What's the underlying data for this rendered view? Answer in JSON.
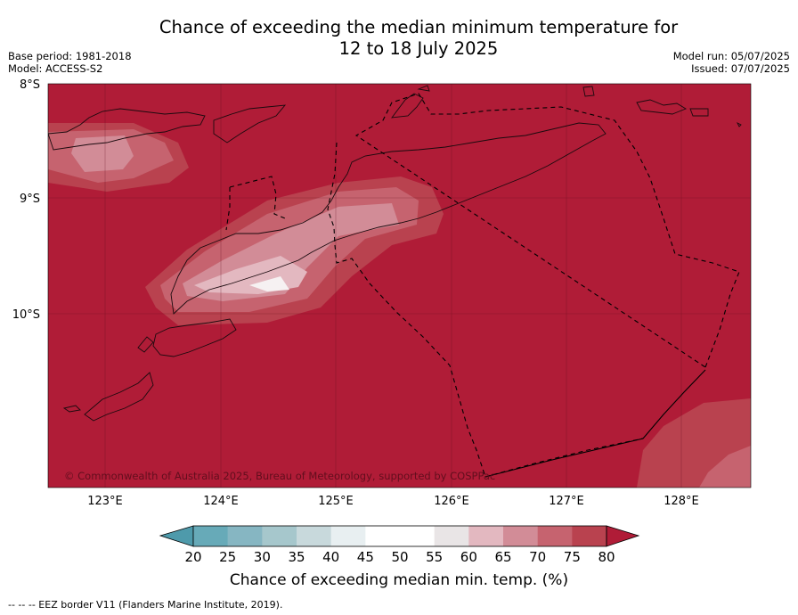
{
  "title_line1": "Chance of exceeding the median minimum temperature for",
  "title_line2": "12 to 18 July 2025",
  "meta": {
    "base_period": "Base period: 1981-2018",
    "model": "Model: ACCESS-S2",
    "model_run": "Model run: 05/07/2025",
    "issued": "Issued: 07/07/2025"
  },
  "map": {
    "lat_labels": [
      "8°S",
      "9°S",
      "10°S"
    ],
    "lon_labels": [
      "123°E",
      "124°E",
      "125°E",
      "126°E",
      "127°E",
      "128°E"
    ],
    "copyright": "© Commonwealth of Australia 2025, Bureau of Meteorology, supported by COSPPac",
    "background_color": "#b01c37"
  },
  "colorbar": {
    "ticks": [
      "20",
      "25",
      "30",
      "35",
      "40",
      "45",
      "50",
      "55",
      "60",
      "65",
      "70",
      "75",
      "80"
    ],
    "colors": [
      "#67aab8",
      "#86b6c2",
      "#a6c7cc",
      "#c8d9dc",
      "#e8eff1",
      "#ffffff",
      "#ffffff",
      "#e9e5e6",
      "#e3b8c0",
      "#d28c97",
      "#c6636f",
      "#b9424f"
    ],
    "under_color": "#4e9aab",
    "over_color": "#b01c37",
    "label": "Chance of exceeding median min. temp. (%)"
  },
  "footnote": "--  --  -- EEZ border V11 (Flanders Marine Institute, 2019)."
}
